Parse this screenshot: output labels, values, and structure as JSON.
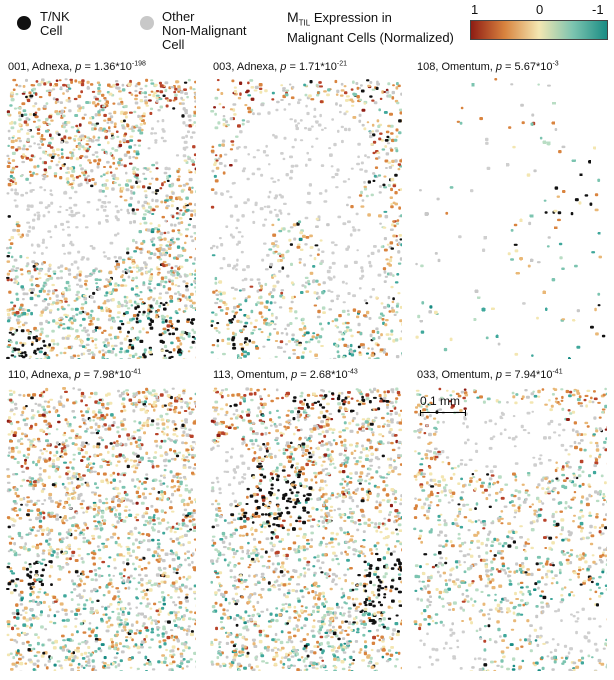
{
  "legend": {
    "tnk_line1": "T/NK",
    "tnk_line2": "Cell",
    "other_line1": "Other",
    "other_line2": "Non-Malignant",
    "other_line3": "Cell",
    "expr_prefix": "M",
    "expr_sub": "TIL",
    "expr_line1_rest": " Expression in",
    "expr_line2": "Malignant Cells (Normalized)",
    "tnk_color": "#111111",
    "other_color": "#c8c8c8"
  },
  "colorbar": {
    "label_high": "1",
    "label_mid": "0",
    "label_low": "-1",
    "color_high": "#8f1d14",
    "color_midhigh": "#d9843f",
    "color_mid": "#f3e6b1",
    "color_midlow": "#7cc4b0",
    "color_low": "#1a8c84"
  },
  "scale": {
    "label": "0.1 mm"
  },
  "panels": [
    {
      "id": "001",
      "site": "Adnexa",
      "p_mant": "1.36",
      "p_exp": "-198",
      "label": "001, Adnexa, ",
      "p_lab": "p",
      "eq": " = 1.36*10"
    },
    {
      "id": "003",
      "site": "Adnexa",
      "p_mant": "1.71",
      "p_exp": "-21",
      "label": "003, Adnexa, ",
      "p_lab": "p",
      "eq": " = 1.71*10"
    },
    {
      "id": "108",
      "site": "Omentum",
      "p_mant": "5.67",
      "p_exp": "-3",
      "label": "108, Omentum, ",
      "p_lab": "p",
      "eq": " = 5.67*10"
    },
    {
      "id": "110",
      "site": "Adnexa",
      "p_mant": "7.98",
      "p_exp": "-41",
      "label": "110, Adnexa, ",
      "p_lab": "p",
      "eq": " = 7.98*10"
    },
    {
      "id": "113",
      "site": "Omentum",
      "p_mant": "2.68",
      "p_exp": "-43",
      "label": "113, Omentum, ",
      "p_lab": "p",
      "eq": " = 2.68*10"
    },
    {
      "id": "033",
      "site": "Omentum",
      "p_mant": "7.94",
      "p_exp": "-41",
      "label": "033, Omentum, ",
      "p_lab": "p",
      "eq": " = 7.94*10"
    }
  ]
}
